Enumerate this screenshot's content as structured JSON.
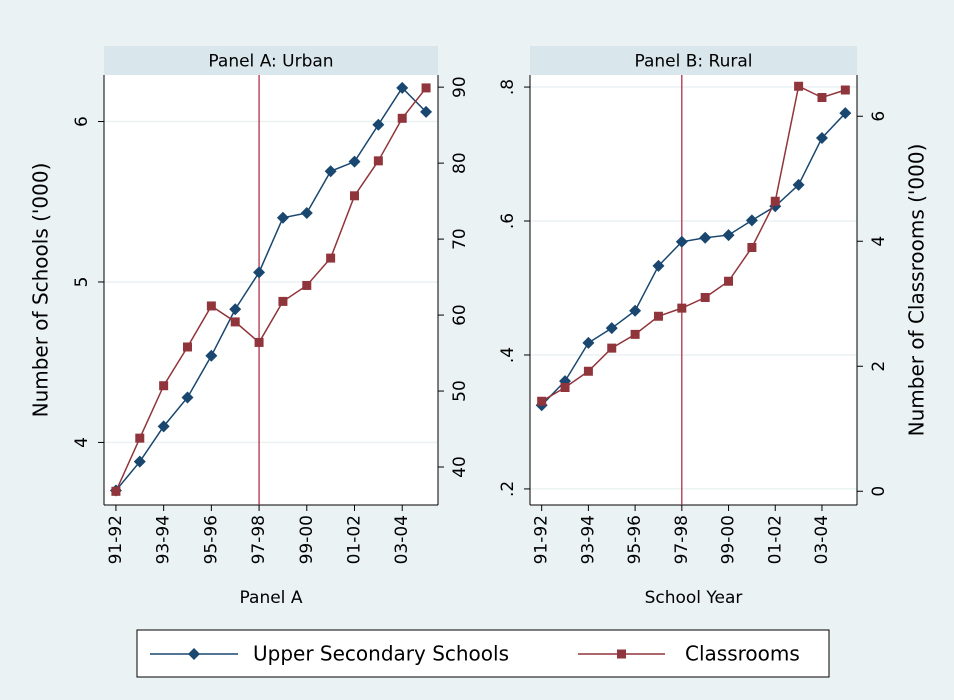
{
  "chart_data": [
    {
      "type": "line",
      "title": "Panel A: Urban",
      "x_label": "Panel A",
      "y_label": "Number of Schools ('000)",
      "categories": [
        "91-92",
        null,
        "93-94",
        null,
        "95-96",
        null,
        "97-98",
        null,
        "99-00",
        null,
        "01-02",
        null,
        "03-04",
        null
      ],
      "xline": "97-98",
      "series": [
        {
          "name": "Upper Secondary Schools",
          "color": "#1a476f",
          "marker": "diamond",
          "values": [
            3.7,
            3.88,
            4.1,
            4.28,
            4.54,
            4.83,
            5.06,
            5.4,
            5.43,
            5.69,
            5.75,
            5.98,
            6.21,
            6.06
          ]
        },
        {
          "name": "Classrooms",
          "color": "#90353b",
          "marker": "square",
          "axis": "y2",
          "values": [
            36.8,
            43.8,
            50.7,
            55.8,
            61.2,
            59.1,
            56.4,
            61.8,
            63.9,
            67.5,
            75.7,
            80.3,
            85.9,
            89.9
          ]
        }
      ],
      "ylim": [
        3.61,
        6.29
      ],
      "yticks": [
        4,
        5,
        6
      ],
      "y2lim": [
        35,
        91.6
      ],
      "y2ticks": [
        40,
        50,
        60,
        70,
        80,
        90
      ],
      "grid": true
    },
    {
      "type": "line",
      "title": "Panel B: Rural",
      "x_label": "School Year",
      "y2_label": "Number of Classrooms ('000)",
      "categories": [
        "91-92",
        null,
        "93-94",
        null,
        "95-96",
        null,
        "97-98",
        null,
        "99-00",
        null,
        "01-02",
        null,
        "03-04",
        null
      ],
      "xline": "97-98",
      "series": [
        {
          "color": "#1a476f",
          "marker": "diamond",
          "values": [
            0.325,
            0.361,
            0.418,
            0.44,
            0.466,
            0.533,
            0.569,
            0.575,
            0.579,
            0.601,
            0.622,
            0.654,
            0.724,
            0.761
          ]
        },
        {
          "color": "#90353b",
          "marker": "square",
          "axis": "y2",
          "values": [
            1.44,
            1.66,
            1.92,
            2.29,
            2.51,
            2.8,
            2.93,
            3.1,
            3.36,
            3.9,
            4.64,
            6.48,
            6.3,
            6.42
          ]
        }
      ],
      "ylim": [
        0.176,
        0.818
      ],
      "yticks": [
        {
          "value": 0.2,
          "label": ".2"
        },
        {
          "value": 0.4,
          "label": ".4"
        },
        {
          "value": 0.6,
          "label": ".6"
        },
        {
          "value": 0.8,
          "label": ".8"
        }
      ],
      "y2lim": [
        -0.22,
        6.66
      ],
      "y2ticks": [
        0,
        2,
        4,
        6
      ],
      "grid": true
    }
  ]
}
